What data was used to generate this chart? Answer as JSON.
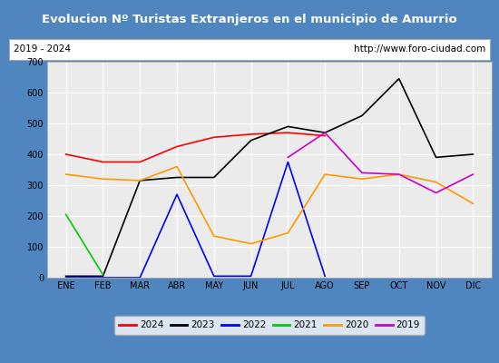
{
  "title": "Evolucion Nº Turistas Extranjeros en el municipio de Amurrio",
  "subtitle_left": "2019 - 2024",
  "subtitle_right": "http://www.foro-ciudad.com",
  "x_labels": [
    "ENE",
    "FEB",
    "MAR",
    "ABR",
    "MAY",
    "JUN",
    "JUL",
    "AGO",
    "SEP",
    "OCT",
    "NOV",
    "DIC"
  ],
  "ylim": [
    0,
    700
  ],
  "yticks": [
    0,
    100,
    200,
    300,
    400,
    500,
    600,
    700
  ],
  "series": {
    "2024": {
      "color": "#ff0000",
      "values": [
        400,
        375,
        375,
        425,
        455,
        465,
        470,
        460,
        null,
        null,
        null,
        null
      ]
    },
    "2023": {
      "color": "#000000",
      "values": [
        5,
        5,
        315,
        325,
        325,
        445,
        490,
        470,
        525,
        645,
        390,
        400
      ]
    },
    "2022": {
      "color": "#0000ff",
      "values": [
        0,
        0,
        0,
        270,
        5,
        5,
        375,
        5,
        null,
        null,
        null,
        null
      ]
    },
    "2021": {
      "color": "#00cc00",
      "values": [
        205,
        10,
        null,
        null,
        null,
        null,
        null,
        null,
        null,
        null,
        null,
        null
      ]
    },
    "2020": {
      "color": "#ff9900",
      "values": [
        335,
        320,
        315,
        360,
        135,
        110,
        145,
        335,
        320,
        335,
        310,
        240
      ]
    },
    "2019": {
      "color": "#cc00cc",
      "values": [
        null,
        null,
        null,
        null,
        null,
        null,
        390,
        470,
        340,
        335,
        275,
        335
      ]
    }
  },
  "legend_order": [
    "2024",
    "2023",
    "2022",
    "2021",
    "2020",
    "2019"
  ],
  "title_bg_color": "#4f86c0",
  "title_text_color": "#ffffff",
  "plot_bg_color": "#ebebeb",
  "grid_color": "#ffffff",
  "outer_bg_color": "#4f86c0",
  "inner_bg_color": "#ffffff"
}
